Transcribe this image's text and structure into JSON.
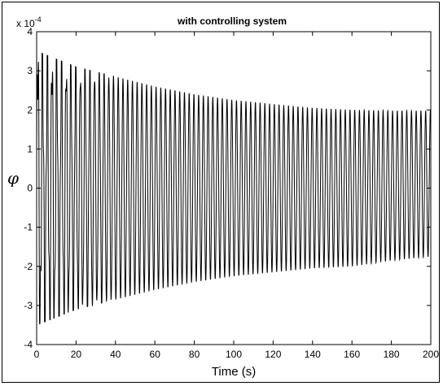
{
  "chart_data": {
    "type": "line",
    "title": "with controlling system",
    "xlabel": "Time (s)",
    "ylabel": "φ",
    "y_scale_prefix": "x 10",
    "y_scale_exponent": "-4",
    "xlim": [
      0,
      200
    ],
    "ylim": [
      -4,
      4
    ],
    "x_ticks": [
      0,
      20,
      40,
      60,
      80,
      100,
      120,
      140,
      160,
      180,
      200
    ],
    "x_tick_labels": [
      "0",
      "20",
      "40",
      "60",
      "80",
      "100",
      "120",
      "140",
      "160",
      "180",
      "200"
    ],
    "y_ticks": [
      -4,
      -3,
      -2,
      -1,
      0,
      1,
      2,
      3,
      4
    ],
    "y_tick_labels": [
      "-4",
      "-3",
      "-2",
      "-1",
      "0",
      "1",
      "2",
      "3",
      "4"
    ],
    "grid": false,
    "line_color": "#000000",
    "series": [
      {
        "envelope_time": [
          0,
          20,
          40,
          60,
          80,
          100,
          120,
          140,
          160,
          180,
          200
        ],
        "envelope_upper": [
          3.5,
          3.1,
          2.85,
          2.6,
          2.4,
          2.25,
          2.15,
          2.05,
          2.0,
          1.98,
          1.98
        ],
        "envelope_lower": [
          -3.5,
          -3.1,
          -2.85,
          -2.6,
          -2.4,
          -2.25,
          -2.15,
          -2.05,
          -2.0,
          -1.85,
          -1.75
        ],
        "dominant_period": 2.4
      }
    ]
  }
}
